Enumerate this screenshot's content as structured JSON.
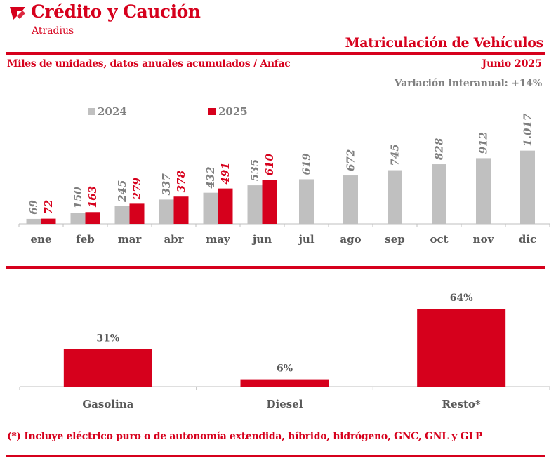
{
  "brand": {
    "name": "Crédito y Caución",
    "sub": "Atradius",
    "accent": "#d6001c"
  },
  "header": {
    "title": "Matriculación de Vehículos",
    "subtitle": "Miles de unidades, datos anuales acumulados / Anfac",
    "date": "Junio 2025",
    "variation": "Variación interanual: +14%"
  },
  "footnote": "(*) Incluye eléctrico puro o de autonomía extendida, híbrido, hidrógeno, GNC, GNL y GLP",
  "chart_data": [
    {
      "type": "bar",
      "categories": [
        "ene",
        "feb",
        "mar",
        "abr",
        "may",
        "jun",
        "jul",
        "ago",
        "sep",
        "oct",
        "nov",
        "dic"
      ],
      "series": [
        {
          "name": "2024",
          "color": "#c0c0c0",
          "label_color": "#7f7f7f",
          "values": [
            69,
            150,
            245,
            337,
            432,
            535,
            619,
            672,
            745,
            828,
            912,
            1017
          ],
          "labels": [
            "69",
            "150",
            "245",
            "337",
            "432",
            "535",
            "619",
            "672",
            "745",
            "828",
            "912",
            "1.017"
          ]
        },
        {
          "name": "2025",
          "color": "#d6001c",
          "label_color": "#d6001c",
          "values": [
            72,
            163,
            279,
            378,
            491,
            610,
            null,
            null,
            null,
            null,
            null,
            null
          ],
          "labels": [
            "72",
            "163",
            "279",
            "378",
            "491",
            "610",
            "",
            "",
            "",
            "",
            "",
            ""
          ]
        }
      ],
      "ylim": [
        0,
        1150
      ],
      "legend": "top-left",
      "grid": false
    },
    {
      "type": "bar",
      "categories": [
        "Gasolina",
        "Diesel",
        "Resto*"
      ],
      "values": [
        31,
        6,
        64
      ],
      "labels": [
        "31%",
        "6%",
        "64%"
      ],
      "color": "#d6001c",
      "label_color": "#595959",
      "ylim": [
        0,
        75
      ],
      "grid": false
    }
  ]
}
